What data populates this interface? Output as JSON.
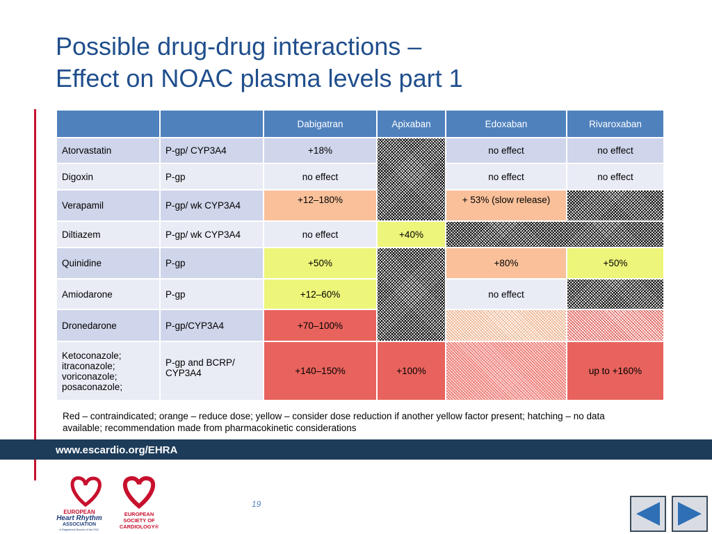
{
  "title": [
    "Possible drug-drug interactions –",
    "Effect on NOAC plasma levels part 1"
  ],
  "table": {
    "header": [
      "Dabigatran",
      "Apixaban",
      "Edoxaban",
      "Rivaroxaban"
    ],
    "rows": [
      [
        "Atorvastatin",
        "P-gp/ CYP3A4",
        "+18%",
        "no effect",
        "no effect"
      ],
      [
        "Digoxin",
        "P-gp",
        "no effect",
        "no effect",
        "no effect"
      ],
      [
        "Verapamil",
        "P-gp/ wk CYP3A4",
        "+12–180%",
        "+ 53% (slow release)"
      ],
      [
        "Diltiazem",
        "P-gp/ wk CYP3A4",
        "no effect",
        "+40%"
      ],
      [
        "Quinidine",
        "P-gp",
        "+50%",
        "+80%",
        "+50%"
      ],
      [
        "Amiodarone",
        "P-gp",
        "+12–60%",
        "no effect"
      ],
      [
        "Dronedarone",
        "P-gp/CYP3A4",
        "+70–100%"
      ],
      [
        "Ketoconazole;\nitraconazole;\nvoriconazole;\nposaconazole;",
        "P-gp and BCRP/\nCYP3A4",
        "+140–150%",
        "+100%",
        "up to +160%"
      ]
    ]
  },
  "footnote": "Red – contraindicated; orange – reduce dose; yellow – consider dose reduction if another yellow factor present; hatching – no data available; recommendation made from pharmacokinetic considerations",
  "footer": {
    "url": "www.escardio.org/EHRA",
    "page": "19"
  },
  "logos": {
    "ehra": [
      "EUROPEAN",
      "Heart Rhythm",
      "ASSOCIATION",
      "A Registered Branch of the ESC"
    ],
    "esc": [
      "EUROPEAN",
      "SOCIETY OF",
      "CARDIOLOGY®"
    ]
  }
}
